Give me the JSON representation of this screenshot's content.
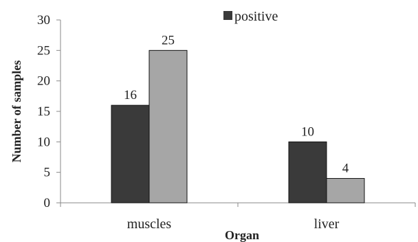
{
  "chart_data": {
    "type": "bar",
    "title": "",
    "xlabel": "Organ",
    "ylabel": "Number of samples",
    "categories": [
      "muscles",
      "liver"
    ],
    "series": [
      {
        "name": "positive",
        "values": [
          16,
          10
        ],
        "color": "#3a3a3a"
      },
      {
        "values": [
          25,
          4
        ],
        "color": "#a6a6a6"
      }
    ],
    "ylim": [
      0,
      30
    ],
    "yticks": [
      0,
      5,
      10,
      15,
      20,
      25,
      30
    ],
    "grid": false,
    "legend": {
      "position": "top-center",
      "entries": [
        "positive"
      ]
    }
  }
}
